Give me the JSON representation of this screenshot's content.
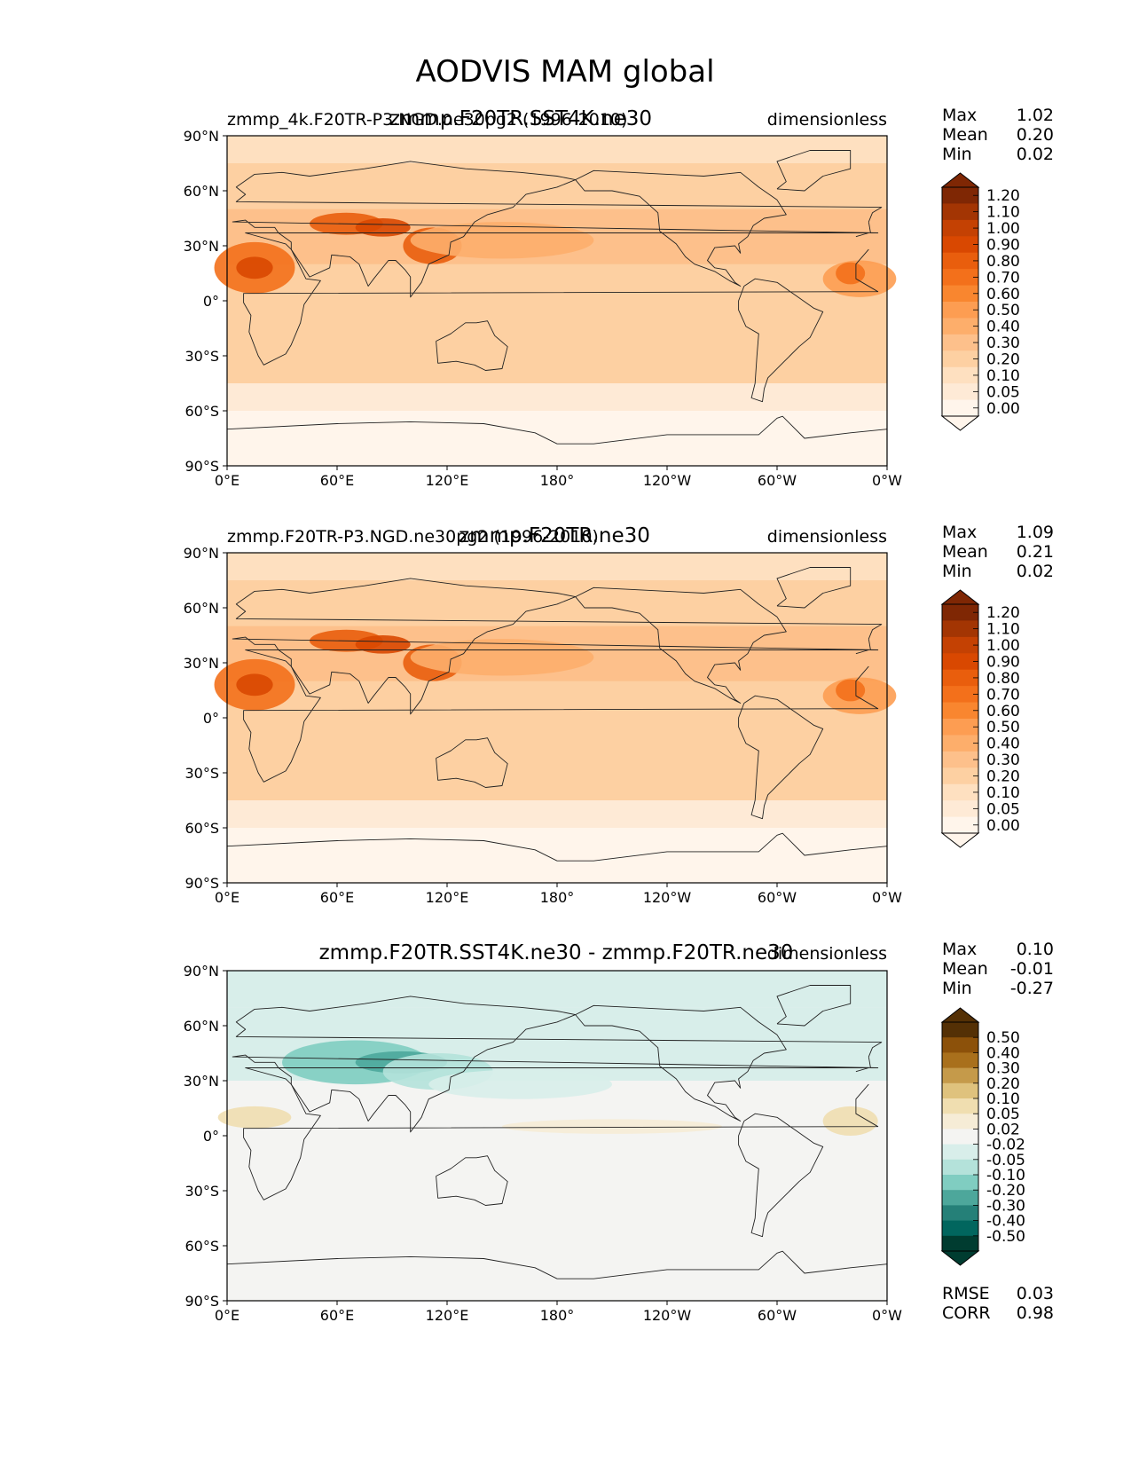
{
  "figure": {
    "title": "AODVIS MAM global"
  },
  "chart_data": [
    {
      "type": "heatmap",
      "id": "p1",
      "title": "zmmp.F20TR.SST4K.ne30",
      "subtitle_left": "zmmp_4k.F20TR-P3.NGD.ne30pg2 (1996-2010)",
      "units": "dimensionless",
      "xticks": [
        "0°E",
        "60°E",
        "120°E",
        "180°",
        "120°W",
        "60°W",
        "0°W"
      ],
      "yticks": [
        "90°N",
        "60°N",
        "30°N",
        "0°",
        "30°S",
        "60°S",
        "90°S"
      ],
      "xlim": [
        0,
        360
      ],
      "ylim": [
        -90,
        90
      ],
      "stats": [
        {
          "label": "Max",
          "value": "1.02"
        },
        {
          "label": "Mean",
          "value": "0.20"
        },
        {
          "label": "Min",
          "value": "0.02"
        }
      ],
      "colorbar": {
        "levels": [
          "1.20",
          "1.10",
          "1.00",
          "0.90",
          "0.80",
          "0.70",
          "0.60",
          "0.50",
          "0.40",
          "0.30",
          "0.20",
          "0.10",
          "0.05",
          "0.00"
        ],
        "colors": [
          "#7f2704",
          "#a33503",
          "#c44103",
          "#d94801",
          "#e95e0d",
          "#f3701b",
          "#f9862f",
          "#fd9d52",
          "#fdae6b",
          "#fdc08b",
          "#fdd0a2",
          "#fee0c0",
          "#feead6",
          "#fff5eb"
        ]
      }
    },
    {
      "type": "heatmap",
      "id": "p2",
      "title": "zmmp.F20TR.ne30",
      "subtitle_left": "zmmp.F20TR-P3.NGD.ne30pg2 (1996-2010)",
      "units": "dimensionless",
      "xticks": [
        "0°E",
        "60°E",
        "120°E",
        "180°",
        "120°W",
        "60°W",
        "0°W"
      ],
      "yticks": [
        "90°N",
        "60°N",
        "30°N",
        "0°",
        "30°S",
        "60°S",
        "90°S"
      ],
      "xlim": [
        0,
        360
      ],
      "ylim": [
        -90,
        90
      ],
      "stats": [
        {
          "label": "Max",
          "value": "1.09"
        },
        {
          "label": "Mean",
          "value": "0.21"
        },
        {
          "label": "Min",
          "value": "0.02"
        }
      ],
      "colorbar": {
        "levels": [
          "1.20",
          "1.10",
          "1.00",
          "0.90",
          "0.80",
          "0.70",
          "0.60",
          "0.50",
          "0.40",
          "0.30",
          "0.20",
          "0.10",
          "0.05",
          "0.00"
        ],
        "colors": [
          "#7f2704",
          "#a33503",
          "#c44103",
          "#d94801",
          "#e95e0d",
          "#f3701b",
          "#f9862f",
          "#fd9d52",
          "#fdae6b",
          "#fdc08b",
          "#fdd0a2",
          "#fee0c0",
          "#feead6",
          "#fff5eb"
        ]
      }
    },
    {
      "type": "heatmap",
      "id": "p3",
      "title": "zmmp.F20TR.SST4K.ne30 - zmmp.F20TR.ne30",
      "subtitle_left": "",
      "units": "dimensionless",
      "xticks": [
        "0°E",
        "60°E",
        "120°E",
        "180°",
        "120°W",
        "60°W",
        "0°W"
      ],
      "yticks": [
        "90°N",
        "60°N",
        "30°N",
        "0°",
        "30°S",
        "60°S",
        "90°S"
      ],
      "xlim": [
        0,
        360
      ],
      "ylim": [
        -90,
        90
      ],
      "stats": [
        {
          "label": "Max",
          "value": "0.10"
        },
        {
          "label": "Mean",
          "value": "-0.01"
        },
        {
          "label": "Min",
          "value": "-0.27"
        }
      ],
      "colorbar": {
        "levels": [
          "0.50",
          "0.40",
          "0.30",
          "0.20",
          "0.10",
          "0.05",
          "0.02",
          "-0.02",
          "-0.05",
          "-0.10",
          "-0.20",
          "-0.30",
          "-0.40",
          "-0.50"
        ],
        "colors": [
          "#543005",
          "#8c510a",
          "#a9701c",
          "#c59a4a",
          "#dfc27d",
          "#f0deb0",
          "#f6ecd6",
          "#f4f4f2",
          "#d8eeea",
          "#b4e2da",
          "#80cdc1",
          "#4da79b",
          "#258078",
          "#01665e",
          "#003c30"
        ]
      },
      "metrics": [
        {
          "label": "RMSE",
          "value": "0.03"
        },
        {
          "label": "CORR",
          "value": "0.98"
        }
      ]
    }
  ]
}
